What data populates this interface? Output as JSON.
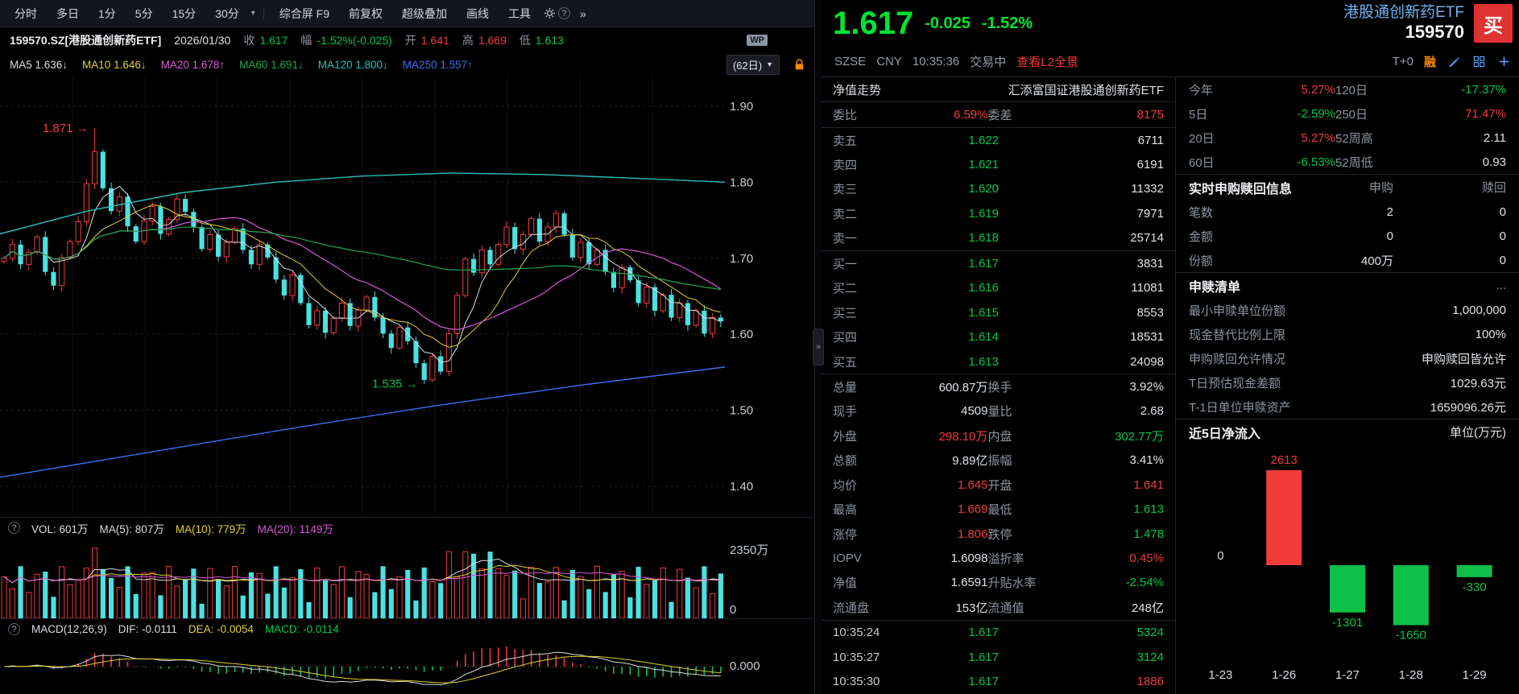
{
  "icons": {
    "caret_down": "▾",
    "chevrons_right": "»",
    "collapse": "»",
    "help": "?",
    "more": "...",
    "triangle_down": "▼"
  },
  "toolbar": {
    "timeframes": [
      "分时",
      "多日",
      "1分",
      "5分",
      "15分",
      "30分"
    ],
    "tools": [
      "综合屏 F9",
      "前复权",
      "超级叠加",
      "画线",
      "工具"
    ]
  },
  "info_bar": {
    "symbol": "159570.SZ[港股通创新药ETF]",
    "date": "2026/01/30",
    "close_label": "收",
    "close": "1.617",
    "range_label": "幅",
    "range": "-1.52%(-0.025)",
    "open_label": "开",
    "open": "1.641",
    "high_label": "高",
    "high": "1.669",
    "low_label": "低",
    "low": "1.613",
    "wp_badge": "WP"
  },
  "ma_bar": {
    "ma5": "MA5 1.636↓",
    "ma10": "MA10 1.646↓",
    "ma20": "MA20 1.678↑",
    "ma60": "MA60 1.691↓",
    "ma120": "MA120 1.800↓",
    "ma250": "MA250 1.557↑",
    "period": "(62日)"
  },
  "vol_pane": {
    "vol_label": "VOL: 601万",
    "ma5": "MA(5): 807万",
    "ma10": "MA(10): 779万",
    "ma20": "MA(20): 1149万",
    "axis_top": "2350万",
    "axis_zero": "0"
  },
  "macd_pane": {
    "title": "MACD(12,26,9)",
    "dif": "DIF: -0.0111",
    "dea": "DEA: -0.0054",
    "macd": "MACD: -0.0114",
    "axis_zero": "0.000"
  },
  "quote": {
    "price": "1.617",
    "change": "-0.025",
    "change_pct": "-1.52%",
    "name": "港股通创新药ETF",
    "code": "159570",
    "buy_label": "买",
    "exchange": "SZSE",
    "currency": "CNY",
    "time": "10:35:36",
    "status": "交易中",
    "l2_link": "查看L2全景",
    "t0": "T+0",
    "margin": "融"
  },
  "order_book": {
    "nav_label": "净值走势",
    "fund_name": "汇添富国证港股通创新药ETF",
    "weibi_label": "委比",
    "weibi": "6.59%",
    "weicha_label": "委差",
    "weicha": "8175",
    "asks": [
      {
        "label": "卖五",
        "price": "1.622",
        "vol": "6711"
      },
      {
        "label": "卖四",
        "price": "1.621",
        "vol": "6191"
      },
      {
        "label": "卖三",
        "price": "1.620",
        "vol": "11332"
      },
      {
        "label": "卖二",
        "price": "1.619",
        "vol": "7971"
      },
      {
        "label": "卖一",
        "price": "1.618",
        "vol": "25714"
      }
    ],
    "bids": [
      {
        "label": "买一",
        "price": "1.617",
        "vol": "3831"
      },
      {
        "label": "买二",
        "price": "1.616",
        "vol": "11081"
      },
      {
        "label": "买三",
        "price": "1.615",
        "vol": "8553"
      },
      {
        "label": "买四",
        "price": "1.614",
        "vol": "18531"
      },
      {
        "label": "买五",
        "price": "1.613",
        "vol": "24098"
      }
    ],
    "stats": [
      {
        "l1": "总量",
        "v1": "600.87万",
        "l2": "换手",
        "v2": "3.92%"
      },
      {
        "l1": "现手",
        "v1": "4509",
        "l2": "量比",
        "v2": "2.68"
      },
      {
        "l1": "外盘",
        "v1": "298.10万",
        "l2": "内盘",
        "v2": "302.77万"
      },
      {
        "l1": "总额",
        "v1": "9.89亿",
        "l2": "振幅",
        "v2": "3.41%"
      },
      {
        "l1": "均价",
        "v1": "1.645",
        "l2": "开盘",
        "v2": "1.641"
      },
      {
        "l1": "最高",
        "v1": "1.669",
        "l2": "最低",
        "v2": "1.613"
      },
      {
        "l1": "涨停",
        "v1": "1.806",
        "l2": "跌停",
        "v2": "1.478"
      },
      {
        "l1": "IOPV",
        "v1": "1.6098",
        "l2": "溢折率",
        "v2": "0.45%"
      },
      {
        "l1": "净值",
        "v1": "1.6591",
        "l2": "升贴水率",
        "v2": "-2.54%"
      },
      {
        "l1": "流通盘",
        "v1": "153亿",
        "l2": "流通值",
        "v2": "248亿"
      }
    ],
    "ticks": [
      {
        "time": "10:35:24",
        "price": "1.617",
        "vol": "5324"
      },
      {
        "time": "10:35:27",
        "price": "1.617",
        "vol": "3124"
      },
      {
        "time": "10:35:30",
        "price": "1.617",
        "vol": "1886"
      }
    ]
  },
  "side_panel": {
    "perf": [
      {
        "l1": "今年",
        "v1": "5.27%",
        "l2": "120日",
        "v2": "-17.37%"
      },
      {
        "l1": "5日",
        "v1": "-2.59%",
        "l2": "250日",
        "v2": "71.47%"
      },
      {
        "l1": "20日",
        "v1": "5.27%",
        "l2": "52周高",
        "v2": "2.11"
      },
      {
        "l1": "60日",
        "v1": "-6.53%",
        "l2": "52周低",
        "v2": "0.93"
      }
    ],
    "subscribe": {
      "title": "实时申购赎回信息",
      "col_buy": "申购",
      "col_redeem": "赎回",
      "rows": [
        {
          "label": "笔数",
          "buy": "2",
          "redeem": "0"
        },
        {
          "label": "金额",
          "buy": "0",
          "redeem": "0"
        },
        {
          "label": "份额",
          "buy": "400万",
          "redeem": "0"
        }
      ]
    },
    "list": {
      "title": "申赎清单",
      "more": "...",
      "rows": [
        {
          "label": "最小申赎单位份额",
          "value": "1,000,000"
        },
        {
          "label": "现金替代比例上限",
          "value": "100%"
        },
        {
          "label": "申购赎回允许情况",
          "value": "申购赎回皆允许"
        },
        {
          "label": "T日预估现金差额",
          "value": "1029.63元"
        },
        {
          "label": "T-1日单位申赎资产",
          "value": "1659096.26元"
        }
      ]
    },
    "flow": {
      "title": "近5日净流入",
      "unit": "单位(万元)"
    }
  },
  "chart_data": [
    {
      "type": "candlestick",
      "title": "159570 港股通创新药ETF 日K",
      "ylim": [
        1.36,
        1.94
      ],
      "yticks": [
        1.9,
        1.8,
        1.7,
        1.6,
        1.5,
        1.4
      ],
      "annotations": [
        {
          "text": "1.871",
          "arrow": "→",
          "color": "#f23c3c"
        },
        {
          "text": "1.535",
          "arrow": "→",
          "color": "#0fbf4a"
        }
      ],
      "spike_index": 11,
      "spike_high": 1.871,
      "dip_index": 51,
      "dip_low": 1.535,
      "closes": [
        1.7,
        1.718,
        1.692,
        1.708,
        1.728,
        1.682,
        1.664,
        1.701,
        1.722,
        1.748,
        1.798,
        1.84,
        1.792,
        1.762,
        1.781,
        1.742,
        1.722,
        1.749,
        1.768,
        1.732,
        1.751,
        1.778,
        1.761,
        1.741,
        1.712,
        1.731,
        1.702,
        1.721,
        1.739,
        1.711,
        1.692,
        1.718,
        1.701,
        1.672,
        1.651,
        1.678,
        1.641,
        1.612,
        1.631,
        1.602,
        1.621,
        1.641,
        1.611,
        1.632,
        1.649,
        1.622,
        1.601,
        1.582,
        1.609,
        1.591,
        1.562,
        1.54,
        1.571,
        1.551,
        1.601,
        1.651,
        1.699,
        1.681,
        1.711,
        1.692,
        1.718,
        1.741,
        1.712,
        1.731,
        1.752,
        1.722,
        1.741,
        1.759,
        1.731,
        1.701,
        1.721,
        1.692,
        1.711,
        1.682,
        1.661,
        1.688,
        1.671,
        1.641,
        1.662,
        1.631,
        1.652,
        1.622,
        1.641,
        1.612,
        1.631,
        1.601,
        1.622,
        1.617
      ],
      "ma120_points": [
        [
          0,
          1.732
        ],
        [
          0.12,
          1.762
        ],
        [
          0.25,
          1.786
        ],
        [
          0.38,
          1.8
        ],
        [
          0.5,
          1.808
        ],
        [
          0.62,
          1.812
        ],
        [
          0.75,
          1.81
        ],
        [
          0.88,
          1.805
        ],
        [
          1,
          1.8
        ]
      ],
      "ma250_points": [
        [
          0,
          1.412
        ],
        [
          0.2,
          1.444
        ],
        [
          0.4,
          1.476
        ],
        [
          0.6,
          1.506
        ],
        [
          0.8,
          1.533
        ],
        [
          1,
          1.557
        ]
      ]
    },
    {
      "type": "bar",
      "title": "近5日净流入(万元)",
      "categories": [
        "1-23",
        "1-26",
        "1-27",
        "1-28",
        "1-29"
      ],
      "values": [
        0,
        2613,
        -1301,
        -1650,
        -330
      ],
      "up_color": "#f23c3c",
      "down_color": "#0fbf4a"
    }
  ]
}
